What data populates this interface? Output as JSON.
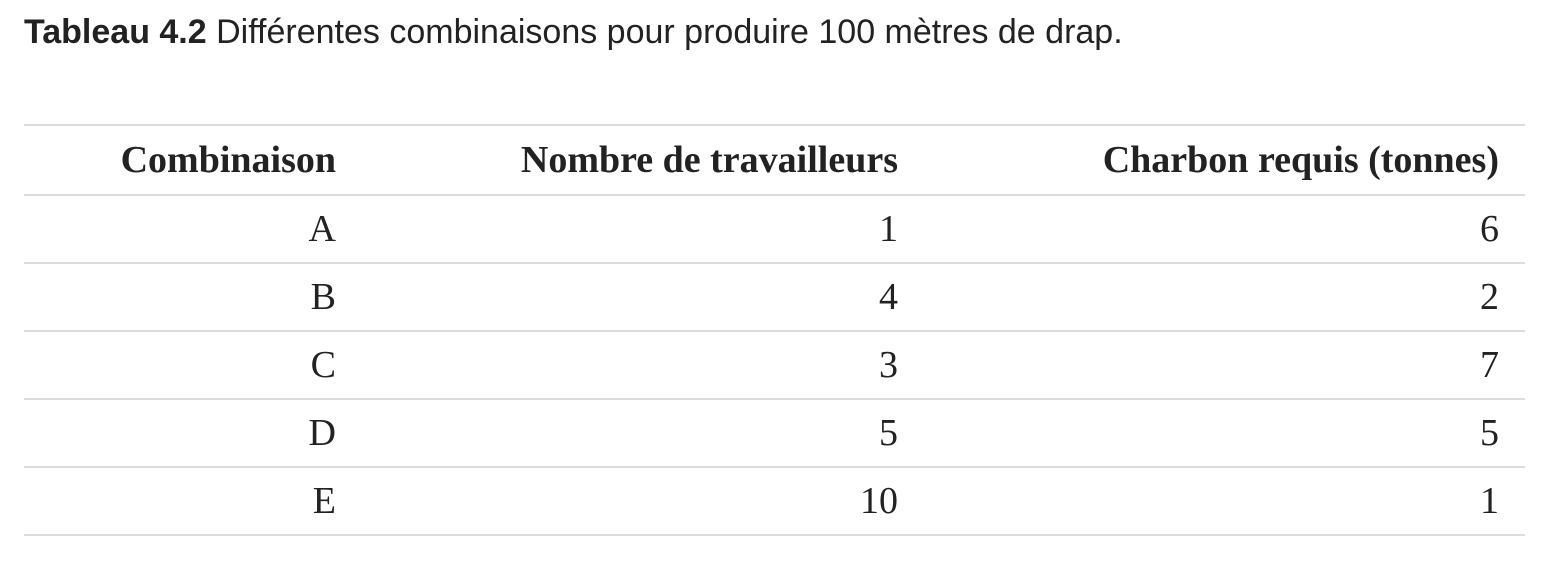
{
  "caption": {
    "label": "Tableau 4.2",
    "text": " Différentes combinaisons pour produire 100 mètres de drap."
  },
  "table": {
    "headers": [
      "Combinaison",
      "Nombre de travailleurs",
      "Charbon requis (tonnes)"
    ],
    "rows": [
      [
        "A",
        "1",
        "6"
      ],
      [
        "B",
        "4",
        "2"
      ],
      [
        "C",
        "3",
        "7"
      ],
      [
        "D",
        "5",
        "5"
      ],
      [
        "E",
        "10",
        "1"
      ]
    ]
  }
}
